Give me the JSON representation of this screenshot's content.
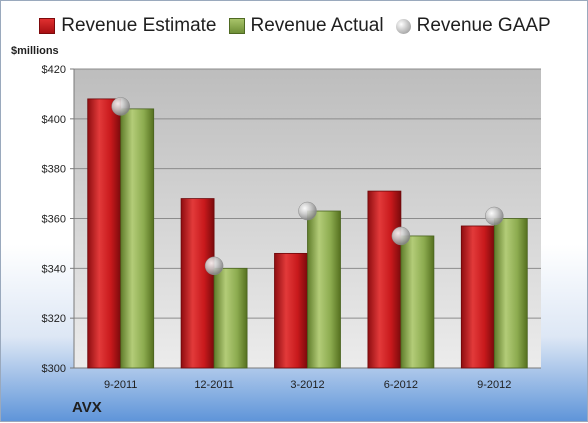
{
  "legend": {
    "estimate": "Revenue Estimate",
    "actual": "Revenue Actual",
    "gaap": "Revenue GAAP"
  },
  "unit_label": "$millions",
  "company": "AVX",
  "colors": {
    "estimate": "#c8191c",
    "actual": "#8cab4f",
    "gaap": "#b5b5b5",
    "plot_background": "#cfcfcf"
  },
  "chart_data": {
    "type": "bar",
    "title": "",
    "xlabel": "",
    "ylabel": "$millions",
    "categories": [
      "9-2011",
      "12-2011",
      "3-2012",
      "6-2012",
      "9-2012"
    ],
    "series": [
      {
        "name": "Revenue Estimate",
        "type": "bar",
        "values": [
          408,
          368,
          346,
          371,
          357
        ]
      },
      {
        "name": "Revenue Actual",
        "type": "bar",
        "values": [
          404,
          340,
          363,
          353,
          360
        ]
      },
      {
        "name": "Revenue GAAP",
        "type": "marker",
        "values": [
          405,
          341,
          363,
          353,
          361
        ]
      }
    ],
    "ylim": [
      300,
      420
    ],
    "yticks": [
      300,
      320,
      340,
      360,
      380,
      400,
      420
    ],
    "ytick_labels": [
      "$300",
      "$320",
      "$340",
      "$360",
      "$380",
      "$400",
      "$420"
    ],
    "grid": true,
    "legend_position": "top"
  }
}
